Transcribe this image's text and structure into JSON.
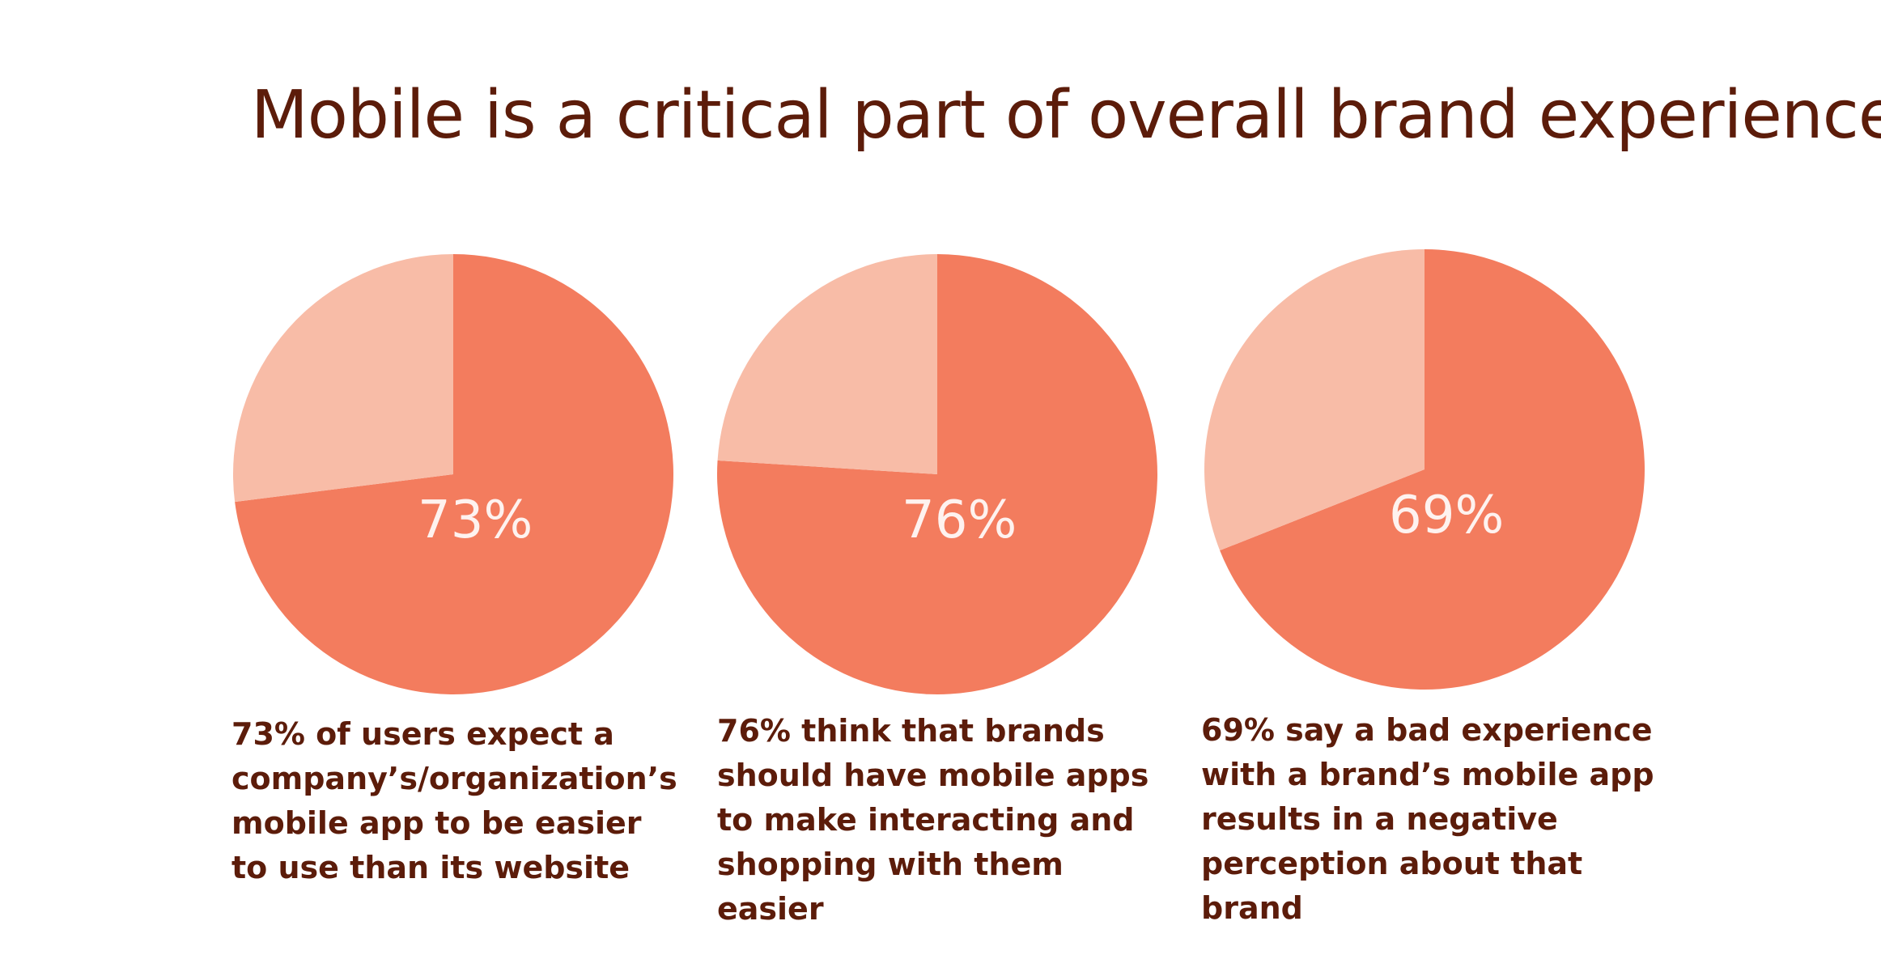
{
  "title": "Mobile is a critical part of overall brand experience:",
  "colors": {
    "title": "#5c1c0a",
    "main_slice": "#f37c5e",
    "rest_slice": "#f8bca7",
    "label": "#ffffff"
  },
  "chart_data": [
    {
      "type": "pie",
      "slices": [
        {
          "label": "73%",
          "value": 73,
          "color": "#f37c5e"
        },
        {
          "label": "",
          "value": 27,
          "color": "#f8bca7"
        }
      ],
      "caption": "73% of users expect a company’s/organization’s mobile app to be easier to use than its website"
    },
    {
      "type": "pie",
      "slices": [
        {
          "label": "76%",
          "value": 76,
          "color": "#f37c5e"
        },
        {
          "label": "",
          "value": 24,
          "color": "#f8bca7"
        }
      ],
      "caption": "76% think that brands should have mobile apps to make interacting and shopping with them easier"
    },
    {
      "type": "pie",
      "slices": [
        {
          "label": "69%",
          "value": 69,
          "color": "#f37c5e"
        },
        {
          "label": "",
          "value": 31,
          "color": "#f8bca7"
        }
      ],
      "caption": "69% say a bad experience with a brand’s mobile app results in a negative perception about that brand"
    }
  ]
}
